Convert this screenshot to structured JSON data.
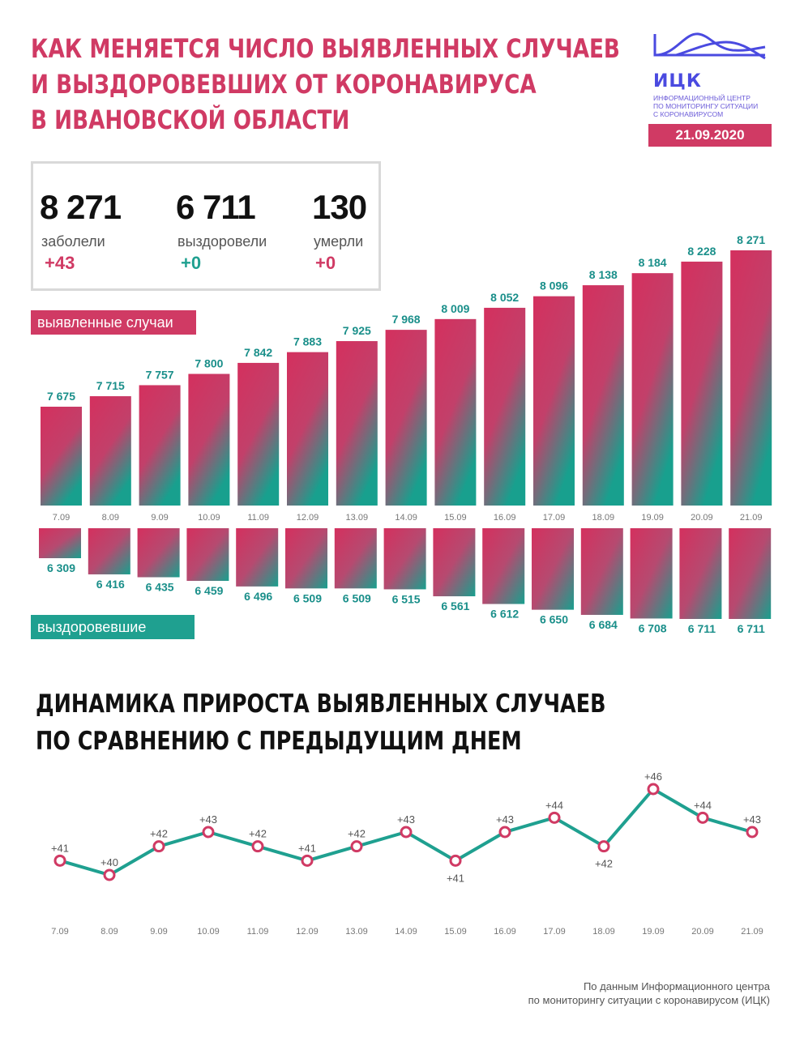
{
  "header": {
    "title_lines": [
      "КАК МЕНЯЕТСЯ ЧИСЛО ВЫЯВЛЕННЫХ СЛУЧАЕВ",
      "И ВЫЗДОРОВЕВШИХ ОТ КОРОНАВИРУСА",
      "В ИВАНОВСКОЙ ОБЛАСТИ"
    ]
  },
  "logo": {
    "abbr": "ИЦК",
    "sub_lines": [
      "ИНФОРМАЦИОННЫЙ ЦЕНТР",
      "ПО МОНИТОРИНГУ СИТУАЦИИ",
      "С КОРОНАВИРУСОМ"
    ]
  },
  "date": "21.09.2020",
  "summary": {
    "stats": [
      {
        "value": "8 271",
        "label": "заболели",
        "delta": "+43"
      },
      {
        "value": "6 711",
        "label": "выздоровели",
        "delta": "+0"
      },
      {
        "value": "130",
        "label": "умерли",
        "delta": "+0"
      }
    ]
  },
  "tags": {
    "cases": "выявленные случаи",
    "recovered": "выздоровевшие"
  },
  "colors": {
    "accent": "#d03a64",
    "teal": "#1fa090",
    "value_teal": "#1a8f8a"
  },
  "chart_data": [
    {
      "type": "bar",
      "categories": [
        "7.09",
        "8.09",
        "9.09",
        "10.09",
        "11.09",
        "12.09",
        "13.09",
        "14.09",
        "15.09",
        "16.09",
        "17.09",
        "18.09",
        "19.09",
        "20.09",
        "21.09"
      ],
      "series": [
        {
          "name": "выявленные случаи",
          "values": [
            7675,
            7715,
            7757,
            7800,
            7842,
            7883,
            7925,
            7968,
            8009,
            8052,
            8096,
            8138,
            8184,
            8228,
            8271
          ]
        },
        {
          "name": "выздоровевшие",
          "values": [
            6309,
            6416,
            6435,
            6459,
            6496,
            6509,
            6509,
            6515,
            6561,
            6612,
            6650,
            6684,
            6708,
            6711,
            6711
          ]
        }
      ],
      "labels_cases": [
        "7 675",
        "7 715",
        "7 757",
        "7 800",
        "7 842",
        "7 883",
        "7 925",
        "7 968",
        "8 009",
        "8 052",
        "8 096",
        "8 138",
        "8 184",
        "8 228",
        "8 271"
      ],
      "labels_recovered": [
        "6 309",
        "6 416",
        "6 435",
        "6 459",
        "6 496",
        "6 509",
        "6 509",
        "6 515",
        "6 561",
        "6 612",
        "6 650",
        "6 684",
        "6 708",
        "6 711",
        "6 711"
      ]
    },
    {
      "type": "line",
      "title_lines": [
        "ДИНАМИКА ПРИРОСТА ВЫЯВЛЕННЫХ СЛУЧАЕВ",
        "ПО СРАВНЕНИЮ С ПРЕДЫДУЩИМ ДНЕМ"
      ],
      "categories": [
        "7.09",
        "8.09",
        "9.09",
        "10.09",
        "11.09",
        "12.09",
        "13.09",
        "14.09",
        "15.09",
        "16.09",
        "17.09",
        "18.09",
        "19.09",
        "20.09",
        "21.09"
      ],
      "values": [
        41,
        40,
        42,
        43,
        42,
        41,
        42,
        43,
        41,
        43,
        44,
        42,
        46,
        44,
        43
      ],
      "labels": [
        "+41",
        "+40",
        "+42",
        "+43",
        "+42",
        "+41",
        "+42",
        "+43",
        "+41",
        "+43",
        "+44",
        "+42",
        "+46",
        "+44",
        "+43"
      ],
      "label_position": [
        "above",
        "above",
        "above",
        "above",
        "above",
        "above",
        "above",
        "above",
        "below",
        "above",
        "above",
        "below",
        "above",
        "above",
        "above"
      ]
    }
  ],
  "source_lines": [
    "По данным Информационного центра",
    "по мониторингу ситуации с коронавирусом (ИЦК)"
  ]
}
